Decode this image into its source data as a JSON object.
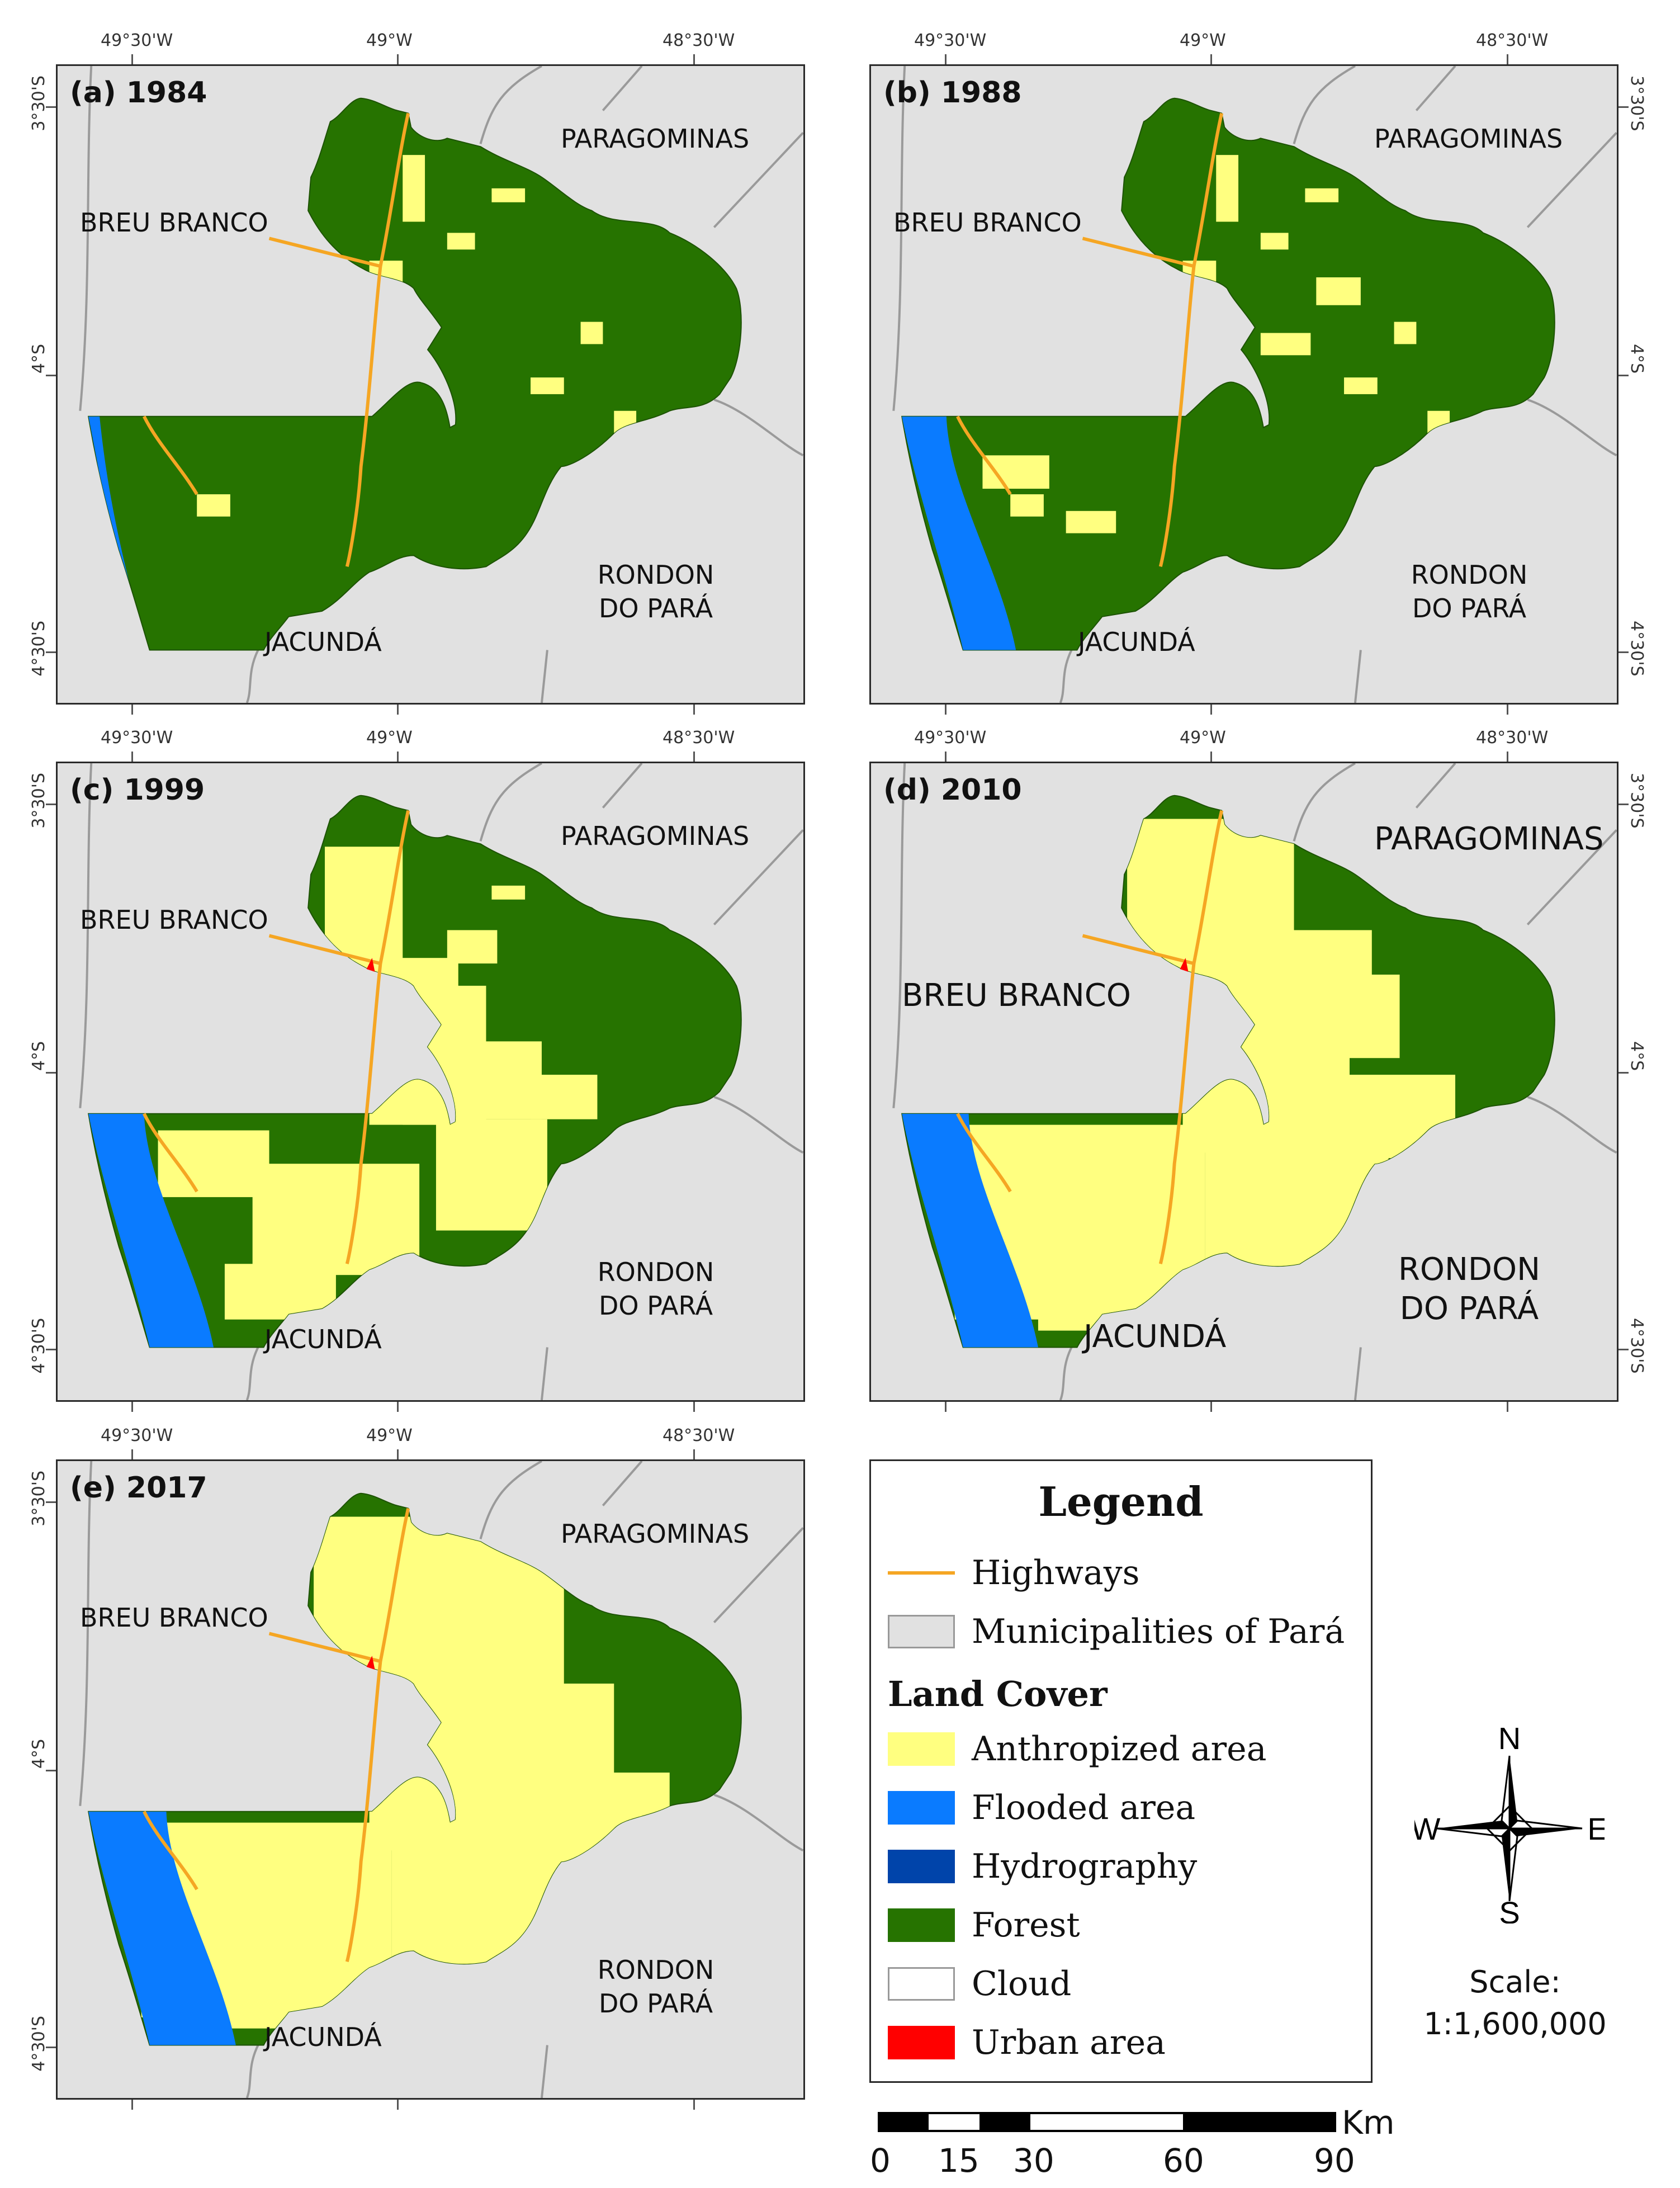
{
  "panels": [
    {
      "label": "(a)  1984",
      "breu": "BREU BRANCO",
      "paragominas": "PARAGOMINAS",
      "rondon": [
        "RONDON",
        "DO PARÁ"
      ],
      "jacunda": "JACUNDÁ",
      "stage": 0,
      "big": false
    },
    {
      "label": "(b)  1988",
      "breu": "BREU BRANCO",
      "paragominas": "PARAGOMINAS",
      "rondon": [
        "RONDON",
        "DO PARÁ"
      ],
      "jacunda": "JACUNDÁ",
      "stage": 1,
      "big": false
    },
    {
      "label": "(c)  1999",
      "breu": "BREU BRANCO",
      "paragominas": "PARAGOMINAS",
      "rondon": [
        "RONDON",
        "DO PARÁ"
      ],
      "jacunda": "JACUNDÁ",
      "stage": 2,
      "big": false
    },
    {
      "label": "(d)  2010",
      "breu": "BREU BRANCO",
      "paragominas": "PARAGOMINAS",
      "rondon": [
        "RONDON",
        "DO PARÁ"
      ],
      "jacunda": "JACUNDÁ",
      "stage": 3,
      "big": true
    },
    {
      "label": "(e)  2017",
      "breu": "BREU BRANCO",
      "paragominas": "PARAGOMINAS",
      "rondon": [
        "RONDON",
        "DO PARÁ"
      ],
      "jacunda": "JACUNDÁ",
      "stage": 4,
      "big": false
    }
  ],
  "coords": {
    "lon": [
      "49°30'W",
      "49°W",
      "48°30'W"
    ],
    "lat": [
      "3°30'S",
      "4°S",
      "4°30'S"
    ]
  },
  "legend": {
    "title": "Legend",
    "items_top": [
      {
        "label": "Highways",
        "type": "line",
        "color": "#f5a623"
      },
      {
        "label": "Municipalities of Pará",
        "type": "box",
        "color": "#e1e1e1"
      }
    ],
    "land_cover_title": "Land Cover",
    "items": [
      {
        "label": "Anthropized area",
        "color": "#ffff80"
      },
      {
        "label": "Flooded area",
        "color": "#0a7bff"
      },
      {
        "label": "Hydrography",
        "color": "#0044aa"
      },
      {
        "label": "Forest",
        "color": "#267300"
      },
      {
        "label": "Cloud",
        "color": "#ffffff"
      },
      {
        "label": "Urban area",
        "color": "#ff0000"
      }
    ]
  },
  "compass": {
    "n": "N",
    "s": "S",
    "e": "E",
    "w": "W"
  },
  "scale": {
    "label": "Scale:",
    "ratio": "1:1,600,000",
    "ticks": [
      "0",
      "15",
      "30",
      "60",
      "90"
    ],
    "unit": "Km"
  },
  "colors": {
    "forest": "#267300",
    "anthropized": "#ffff80",
    "flooded": "#0a7bff",
    "highway": "#f5a623",
    "urban": "#ff0000",
    "background": "#e1e1e1"
  }
}
